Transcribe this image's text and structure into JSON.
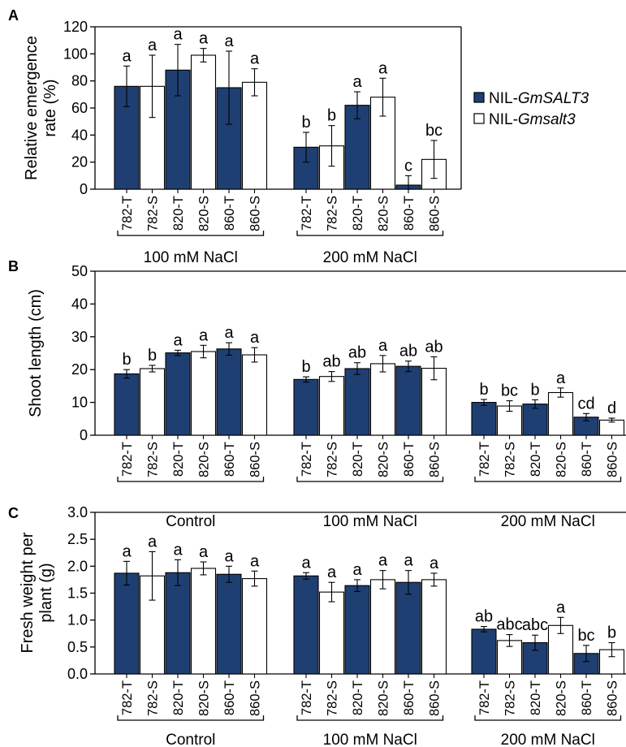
{
  "colors": {
    "filled": "#1f3f73",
    "open": "#ffffff",
    "stroke": "#000000"
  },
  "legend": {
    "items": [
      {
        "prefix": "NIL-",
        "name": "GmSALT3",
        "fill": "#1f3f73"
      },
      {
        "prefix": "NIL-",
        "name": "Gmsalt3",
        "fill": "#ffffff"
      }
    ]
  },
  "chart_data": [
    {
      "type": "bar",
      "panel": "A",
      "ylabel": [
        "Relative emergence",
        "rate (%)"
      ],
      "ylim": [
        0,
        120
      ],
      "yticks": [
        "0",
        "20",
        "40",
        "60",
        "80",
        "100",
        "120"
      ],
      "groups": [
        {
          "label": "100 mM NaCl",
          "bars": [
            {
              "category": "782-T",
              "value": 76,
              "err": 15,
              "sig": "a",
              "series": "GmSALT3"
            },
            {
              "category": "782-S",
              "value": 76,
              "err": 23,
              "sig": "a",
              "series": "Gmsalt3"
            },
            {
              "category": "820-T",
              "value": 88,
              "err": 19,
              "sig": "a",
              "series": "GmSALT3"
            },
            {
              "category": "820-S",
              "value": 99,
              "err": 5,
              "sig": "a",
              "series": "Gmsalt3"
            },
            {
              "category": "860-T",
              "value": 75,
              "err": 27,
              "sig": "a",
              "series": "GmSALT3"
            },
            {
              "category": "860-S",
              "value": 79,
              "err": 10,
              "sig": "a",
              "series": "Gmsalt3"
            }
          ]
        },
        {
          "label": "200 mM NaCl",
          "bars": [
            {
              "category": "782-T",
              "value": 31,
              "err": 11,
              "sig": "b",
              "series": "GmSALT3"
            },
            {
              "category": "782-S",
              "value": 32,
              "err": 15,
              "sig": "b",
              "series": "Gmsalt3"
            },
            {
              "category": "820-T",
              "value": 62,
              "err": 10,
              "sig": "a",
              "series": "GmSALT3"
            },
            {
              "category": "820-S",
              "value": 68,
              "err": 14,
              "sig": "a",
              "series": "Gmsalt3"
            },
            {
              "category": "860-T",
              "value": 3,
              "err": 7,
              "sig": "c",
              "series": "GmSALT3"
            },
            {
              "category": "860-S",
              "value": 22,
              "err": 14,
              "sig": "bc",
              "series": "Gmsalt3"
            }
          ]
        }
      ]
    },
    {
      "type": "bar",
      "panel": "B",
      "ylabel": [
        "Shoot length (cm)"
      ],
      "ylim": [
        0,
        50
      ],
      "yticks": [
        "0",
        "10",
        "20",
        "30",
        "40",
        "50"
      ],
      "groups": [
        {
          "label": "Control",
          "bars": [
            {
              "category": "782-T",
              "value": 18.7,
              "err": 1.3,
              "sig": "b",
              "series": "GmSALT3"
            },
            {
              "category": "782-S",
              "value": 20.3,
              "err": 1.0,
              "sig": "b",
              "series": "Gmsalt3"
            },
            {
              "category": "820-T",
              "value": 25.1,
              "err": 0.8,
              "sig": "a",
              "series": "GmSALT3"
            },
            {
              "category": "820-S",
              "value": 25.5,
              "err": 1.9,
              "sig": "a",
              "series": "Gmsalt3"
            },
            {
              "category": "860-T",
              "value": 26.3,
              "err": 1.9,
              "sig": "a",
              "series": "GmSALT3"
            },
            {
              "category": "860-S",
              "value": 24.5,
              "err": 2.2,
              "sig": "a",
              "series": "Gmsalt3"
            }
          ]
        },
        {
          "label": "100 mM NaCl",
          "bars": [
            {
              "category": "782-T",
              "value": 17.0,
              "err": 0.8,
              "sig": "b",
              "series": "GmSALT3"
            },
            {
              "category": "782-S",
              "value": 17.9,
              "err": 1.5,
              "sig": "ab",
              "series": "Gmsalt3"
            },
            {
              "category": "820-T",
              "value": 20.3,
              "err": 1.8,
              "sig": "ab",
              "series": "GmSALT3"
            },
            {
              "category": "820-S",
              "value": 21.8,
              "err": 2.5,
              "sig": "a",
              "series": "Gmsalt3"
            },
            {
              "category": "860-T",
              "value": 21.0,
              "err": 1.6,
              "sig": "ab",
              "series": "GmSALT3"
            },
            {
              "category": "860-S",
              "value": 20.4,
              "err": 3.5,
              "sig": "ab",
              "series": "Gmsalt3"
            }
          ]
        },
        {
          "label": "200 mM NaCl",
          "bars": [
            {
              "category": "782-T",
              "value": 10.0,
              "err": 0.9,
              "sig": "b",
              "series": "GmSALT3"
            },
            {
              "category": "782-S",
              "value": 8.9,
              "err": 1.6,
              "sig": "bc",
              "series": "Gmsalt3"
            },
            {
              "category": "820-T",
              "value": 9.5,
              "err": 1.3,
              "sig": "b",
              "series": "GmSALT3"
            },
            {
              "category": "820-S",
              "value": 13.0,
              "err": 1.4,
              "sig": "a",
              "series": "Gmsalt3"
            },
            {
              "category": "860-T",
              "value": 5.5,
              "err": 1.1,
              "sig": "cd",
              "series": "GmSALT3"
            },
            {
              "category": "860-S",
              "value": 4.6,
              "err": 0.6,
              "sig": "d",
              "series": "Gmsalt3"
            }
          ]
        }
      ]
    },
    {
      "type": "bar",
      "panel": "C",
      "ylabel": [
        "Fresh weight per",
        "plant (g)"
      ],
      "ylim": [
        0,
        3.0
      ],
      "yticks": [
        "0.0",
        "0.5",
        "1.0",
        "1.5",
        "2.0",
        "2.5",
        "3.0"
      ],
      "groups": [
        {
          "label": "Control",
          "bars": [
            {
              "category": "782-T",
              "value": 1.87,
              "err": 0.22,
              "sig": "a",
              "series": "GmSALT3"
            },
            {
              "category": "782-S",
              "value": 1.82,
              "err": 0.45,
              "sig": "a",
              "series": "Gmsalt3"
            },
            {
              "category": "820-T",
              "value": 1.88,
              "err": 0.24,
              "sig": "a",
              "series": "GmSALT3"
            },
            {
              "category": "820-S",
              "value": 1.96,
              "err": 0.12,
              "sig": "a",
              "series": "Gmsalt3"
            },
            {
              "category": "860-T",
              "value": 1.85,
              "err": 0.15,
              "sig": "a",
              "series": "GmSALT3"
            },
            {
              "category": "860-S",
              "value": 1.77,
              "err": 0.14,
              "sig": "a",
              "series": "Gmsalt3"
            }
          ]
        },
        {
          "label": "100 mM NaCl",
          "bars": [
            {
              "category": "782-T",
              "value": 1.82,
              "err": 0.06,
              "sig": "a",
              "series": "GmSALT3"
            },
            {
              "category": "782-S",
              "value": 1.52,
              "err": 0.18,
              "sig": "a",
              "series": "Gmsalt3"
            },
            {
              "category": "820-T",
              "value": 1.64,
              "err": 0.11,
              "sig": "a",
              "series": "GmSALT3"
            },
            {
              "category": "820-S",
              "value": 1.75,
              "err": 0.17,
              "sig": "a",
              "series": "Gmsalt3"
            },
            {
              "category": "860-T",
              "value": 1.7,
              "err": 0.22,
              "sig": "a",
              "series": "GmSALT3"
            },
            {
              "category": "860-S",
              "value": 1.75,
              "err": 0.12,
              "sig": "a",
              "series": "Gmsalt3"
            }
          ]
        },
        {
          "label": "200 mM NaCl",
          "bars": [
            {
              "category": "782-T",
              "value": 0.83,
              "err": 0.05,
              "sig": "ab",
              "series": "GmSALT3"
            },
            {
              "category": "782-S",
              "value": 0.62,
              "err": 0.11,
              "sig": "abc",
              "series": "Gmsalt3"
            },
            {
              "category": "820-T",
              "value": 0.58,
              "err": 0.14,
              "sig": "abc",
              "series": "GmSALT3"
            },
            {
              "category": "820-S",
              "value": 0.9,
              "err": 0.15,
              "sig": "a",
              "series": "Gmsalt3"
            },
            {
              "category": "860-T",
              "value": 0.38,
              "err": 0.15,
              "sig": "bc",
              "series": "GmSALT3"
            },
            {
              "category": "860-S",
              "value": 0.45,
              "err": 0.13,
              "sig": "b",
              "series": "Gmsalt3"
            }
          ]
        }
      ]
    }
  ]
}
